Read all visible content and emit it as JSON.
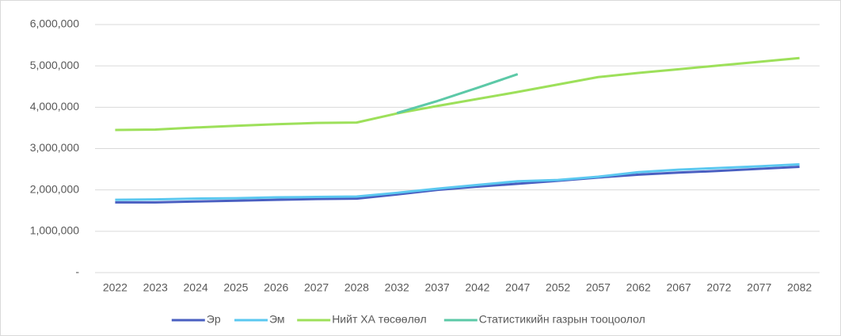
{
  "chart_data": {
    "type": "line",
    "categories": [
      "2022",
      "2023",
      "2024",
      "2025",
      "2026",
      "2027",
      "2028",
      "2032",
      "2037",
      "2042",
      "2047",
      "2052",
      "2057",
      "2062",
      "2067",
      "2072",
      "2077",
      "2082"
    ],
    "series": [
      {
        "name": "Эр",
        "color": "#4a5fc1",
        "values": [
          1700000,
          1700000,
          1720000,
          1740000,
          1760000,
          1780000,
          1790000,
          1890000,
          2000000,
          2080000,
          2150000,
          2220000,
          2300000,
          2370000,
          2420000,
          2460000,
          2510000,
          2560000
        ]
      },
      {
        "name": "Эм",
        "color": "#5bc8f0",
        "values": [
          1760000,
          1770000,
          1790000,
          1800000,
          1820000,
          1830000,
          1840000,
          1930000,
          2030000,
          2120000,
          2210000,
          2240000,
          2320000,
          2430000,
          2490000,
          2530000,
          2570000,
          2620000
        ]
      },
      {
        "name": "Нийт ХА төсөөлөл",
        "color": "#9de05a",
        "values": [
          3450000,
          3460000,
          3510000,
          3550000,
          3590000,
          3620000,
          3630000,
          3850000,
          4030000,
          4200000,
          4370000,
          4550000,
          4730000,
          4830000,
          4920000,
          5010000,
          5100000,
          5190000
        ]
      },
      {
        "name": "Статистикийн газрын тооцоолол",
        "color": "#5cc9a7",
        "values": [
          null,
          null,
          null,
          null,
          null,
          null,
          null,
          3860000,
          4150000,
          4470000,
          4800000,
          null,
          null,
          null,
          null,
          null,
          null,
          null
        ]
      }
    ],
    "ylim": [
      0,
      6000000
    ],
    "yticks": [
      {
        "value": 0,
        "label": "-"
      },
      {
        "value": 1000000,
        "label": "1,000,000"
      },
      {
        "value": 2000000,
        "label": "2,000,000"
      },
      {
        "value": 3000000,
        "label": "3,000,000"
      },
      {
        "value": 4000000,
        "label": "4,000,000"
      },
      {
        "value": 5000000,
        "label": "5,000,000"
      },
      {
        "value": 6000000,
        "label": "6,000,000"
      }
    ],
    "grid": true,
    "legend": "bottom"
  }
}
